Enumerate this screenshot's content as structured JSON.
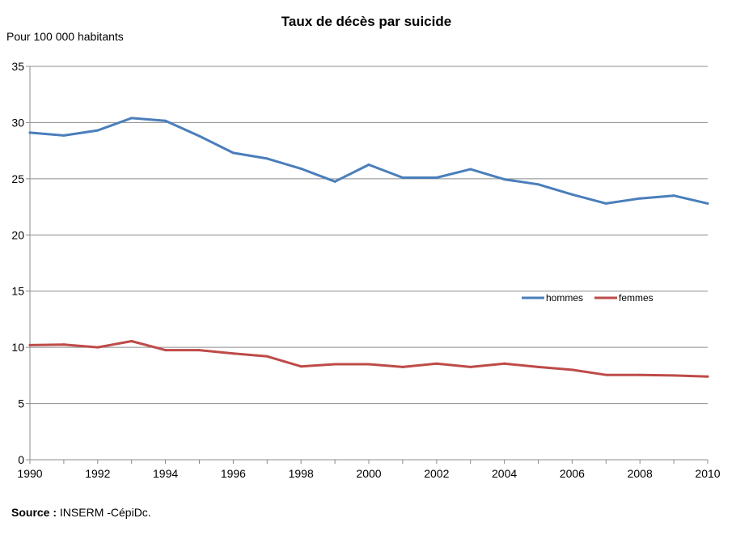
{
  "chart_data": {
    "type": "line",
    "title": "Taux de décès par suicide",
    "unit_label": "Pour 100 000 habitants",
    "x": [
      1990,
      1991,
      1992,
      1993,
      1994,
      1995,
      1996,
      1997,
      1998,
      1999,
      2000,
      2001,
      2002,
      2003,
      2004,
      2005,
      2006,
      2007,
      2008,
      2009,
      2010
    ],
    "x_ticks": [
      "1990",
      "1992",
      "1994",
      "1996",
      "1998",
      "2000",
      "2002",
      "2004",
      "2006",
      "2008",
      "2010"
    ],
    "y_ticks": [
      "0",
      "5",
      "10",
      "15",
      "20",
      "25",
      "30",
      "35"
    ],
    "xlim": [
      1990,
      2010
    ],
    "ylim": [
      0,
      35
    ],
    "grid": true,
    "legend_position": "center-right",
    "series": [
      {
        "name": "hommes",
        "color": "#4a7ebb",
        "values": [
          29.1,
          28.85,
          29.3,
          30.4,
          30.15,
          28.8,
          27.3,
          26.8,
          25.9,
          24.75,
          26.25,
          25.1,
          25.1,
          25.85,
          24.95,
          24.5,
          23.6,
          22.8,
          23.25,
          23.5,
          22.8
        ]
      },
      {
        "name": "femmes",
        "color": "#be4b48",
        "values": [
          10.2,
          10.25,
          10.0,
          10.55,
          9.75,
          9.75,
          9.45,
          9.2,
          8.3,
          8.5,
          8.5,
          8.25,
          8.55,
          8.25,
          8.55,
          8.25,
          8.0,
          7.55,
          7.55,
          7.5,
          7.4
        ]
      }
    ]
  },
  "source": {
    "label": "Source :",
    "text": " INSERM -CépiDc."
  }
}
